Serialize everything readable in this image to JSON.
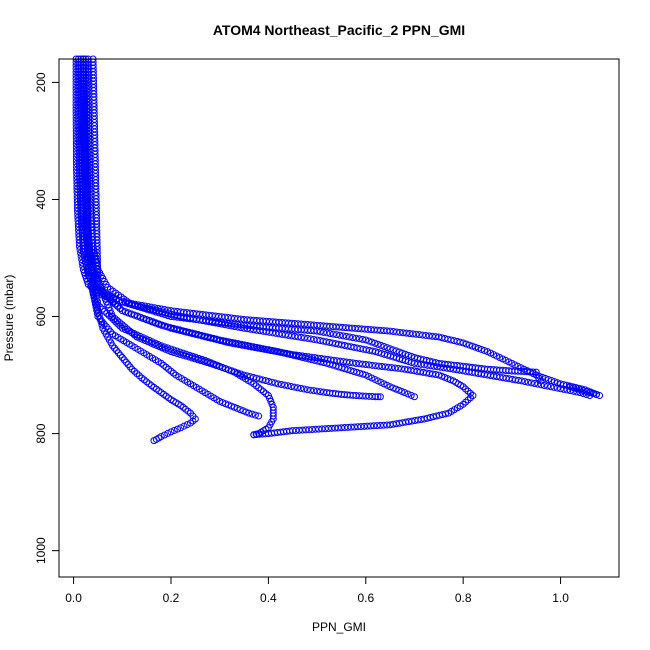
{
  "chart_data": {
    "type": "scatter",
    "title": "ATOM4 Northeast_Pacific_2 PPN_GMI",
    "xlabel": "PPN_GMI",
    "ylabel": "Pressure (mbar)",
    "xlim": [
      -0.03,
      1.12
    ],
    "ylim": [
      1045,
      160
    ],
    "y_reversed": true,
    "xticks": [
      0.0,
      0.2,
      0.4,
      0.6,
      0.8,
      1.0
    ],
    "xtick_labels": [
      "0.0",
      "0.2",
      "0.4",
      "0.6",
      "0.8",
      "1.0"
    ],
    "yticks": [
      200,
      400,
      600,
      800,
      1000
    ],
    "ytick_labels": [
      "200",
      "400",
      "600",
      "800",
      "1000"
    ],
    "grid": false,
    "legend": "none",
    "marker": "open-circle",
    "color": "#0000ff",
    "series": [
      {
        "x": [
          0.005,
          0.005,
          0.006,
          0.008,
          0.012,
          0.02,
          0.03,
          0.05,
          0.1,
          0.2,
          0.35,
          0.5,
          0.65,
          0.75,
          0.8,
          0.85,
          0.9,
          0.95,
          1.0,
          1.05,
          1.08,
          1.06,
          1.02
        ],
        "y": [
          160,
          250,
          350,
          420,
          480,
          520,
          545,
          560,
          575,
          590,
          605,
          615,
          625,
          635,
          645,
          660,
          680,
          700,
          715,
          725,
          735,
          730,
          720
        ]
      },
      {
        "x": [
          0.01,
          0.01,
          0.012,
          0.015,
          0.02,
          0.03,
          0.05,
          0.1,
          0.2,
          0.35,
          0.5,
          0.6,
          0.65,
          0.7,
          0.75,
          0.8,
          0.85,
          0.9,
          0.95,
          0.95,
          0.96
        ],
        "y": [
          160,
          260,
          360,
          430,
          490,
          530,
          555,
          575,
          600,
          615,
          625,
          640,
          655,
          670,
          680,
          685,
          690,
          693,
          695,
          700,
          710
        ]
      },
      {
        "x": [
          0.03,
          0.03,
          0.032,
          0.035,
          0.04,
          0.05,
          0.07,
          0.12,
          0.22,
          0.35,
          0.5,
          0.62,
          0.7,
          0.78,
          0.85,
          0.92,
          0.98,
          1.04,
          1.06
        ],
        "y": [
          160,
          250,
          350,
          420,
          480,
          520,
          550,
          580,
          600,
          620,
          640,
          660,
          680,
          690,
          700,
          710,
          720,
          730,
          735
        ]
      },
      {
        "x": [
          0.02,
          0.02,
          0.025,
          0.03,
          0.04,
          0.06,
          0.1,
          0.18,
          0.3,
          0.42,
          0.52,
          0.6,
          0.65,
          0.68,
          0.7
        ],
        "y": [
          160,
          300,
          400,
          470,
          520,
          560,
          590,
          615,
          640,
          660,
          680,
          700,
          720,
          730,
          737
        ]
      },
      {
        "x": [
          0.015,
          0.016,
          0.02,
          0.03,
          0.05,
          0.1,
          0.2,
          0.32,
          0.45,
          0.58,
          0.68,
          0.75,
          0.78,
          0.8,
          0.82,
          0.8,
          0.77,
          0.72,
          0.65,
          0.55,
          0.45,
          0.4,
          0.37
        ],
        "y": [
          160,
          300,
          420,
          500,
          550,
          590,
          620,
          645,
          665,
          680,
          690,
          700,
          710,
          720,
          735,
          750,
          765,
          775,
          785,
          790,
          795,
          800,
          802
        ]
      },
      {
        "x": [
          0.02,
          0.025,
          0.03,
          0.05,
          0.08,
          0.12,
          0.15,
          0.18,
          0.21,
          0.24,
          0.27,
          0.3,
          0.33,
          0.36,
          0.38
        ],
        "y": [
          160,
          400,
          520,
          600,
          630,
          650,
          665,
          680,
          700,
          715,
          730,
          745,
          755,
          765,
          770
        ]
      },
      {
        "x": [
          0.025,
          0.03,
          0.04,
          0.06,
          0.08,
          0.1,
          0.12,
          0.14,
          0.16,
          0.18,
          0.2,
          0.22,
          0.24,
          0.25,
          0.24,
          0.22,
          0.2,
          0.18,
          0.17,
          0.165
        ],
        "y": [
          160,
          450,
          560,
          620,
          650,
          670,
          690,
          705,
          718,
          730,
          742,
          752,
          765,
          775,
          782,
          790,
          797,
          805,
          810,
          812
        ]
      },
      {
        "x": [
          0.02,
          0.03,
          0.05,
          0.1,
          0.18,
          0.27,
          0.33,
          0.37,
          0.4,
          0.41,
          0.41,
          0.4,
          0.38,
          0.37
        ],
        "y": [
          160,
          480,
          580,
          620,
          650,
          675,
          695,
          715,
          735,
          755,
          775,
          790,
          800,
          802
        ]
      },
      {
        "x": [
          0.04,
          0.05,
          0.08,
          0.13,
          0.2,
          0.28,
          0.35,
          0.42,
          0.48,
          0.52,
          0.55,
          0.58,
          0.6,
          0.62,
          0.63
        ],
        "y": [
          160,
          540,
          600,
          635,
          660,
          680,
          700,
          715,
          725,
          730,
          733,
          735,
          736,
          737,
          737
        ]
      }
    ]
  }
}
